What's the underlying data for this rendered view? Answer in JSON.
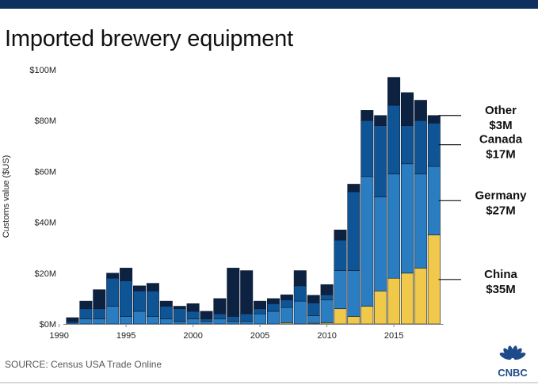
{
  "title": "Imported brewery equipment",
  "source": "SOURCE: Census USA Trade Online",
  "logo": {
    "icon": "peacock-icon",
    "text": "CNBC"
  },
  "colors": {
    "China": "#f0c94a",
    "Germany": "#2a7dc0",
    "Canada": "#0f5596",
    "Other": "#0d2140",
    "top_bar": "#0f2f5f",
    "leader": "#111111"
  },
  "chart_data": {
    "type": "bar",
    "stacked": true,
    "title": "Imported brewery equipment",
    "xlabel": "",
    "ylabel": "Customs value ($US)",
    "ylim": [
      0,
      100
    ],
    "y_ticks": [
      0,
      20,
      40,
      60,
      80,
      100
    ],
    "y_tick_labels": [
      "$0M",
      "$20M",
      "$40M",
      "$60M",
      "$80M",
      "$100M"
    ],
    "x_ticks": [
      1990,
      1995,
      2000,
      2005,
      2010,
      2015
    ],
    "x_tick_labels": [
      "1990",
      "1995",
      "2000",
      "2005",
      "2010",
      "2015"
    ],
    "grid": false,
    "legend": "annotations at right of last bar",
    "categories": [
      1991,
      1992,
      1993,
      1994,
      1995,
      1996,
      1997,
      1998,
      1999,
      2000,
      2001,
      2002,
      2003,
      2004,
      2005,
      2006,
      2007,
      2008,
      2009,
      2010,
      2011,
      2012,
      2013,
      2014,
      2015,
      2016,
      2017,
      2018
    ],
    "series": [
      {
        "name": "China",
        "values": [
          0,
          0,
          0,
          0,
          0,
          0,
          0,
          0,
          0,
          0,
          0,
          0,
          0,
          0,
          0,
          0,
          0.5,
          0,
          0.3,
          0.5,
          6,
          3,
          7,
          13,
          18,
          20,
          22,
          35
        ]
      },
      {
        "name": "Germany",
        "values": [
          0.5,
          2,
          2,
          7,
          3,
          5,
          3,
          2,
          1,
          2,
          1,
          2,
          1,
          1,
          4,
          5,
          6,
          9,
          3,
          9,
          15,
          18,
          51,
          37,
          41,
          43,
          37,
          27
        ]
      },
      {
        "name": "Canada",
        "values": [
          0.5,
          4,
          4,
          11,
          14,
          8,
          10,
          5,
          5,
          3,
          1,
          2,
          2,
          3,
          2,
          3,
          3,
          6,
          5,
          2,
          12,
          31,
          22,
          28,
          27,
          15,
          21,
          17
        ]
      },
      {
        "name": "Other",
        "values": [
          1.5,
          3,
          7.5,
          2,
          5,
          2,
          3,
          2,
          1,
          3,
          3,
          6,
          19,
          17,
          3,
          2,
          2,
          6,
          3,
          4,
          4,
          3,
          4,
          4,
          11,
          13,
          8,
          3
        ]
      }
    ],
    "annotations": [
      {
        "series": "Other",
        "name": "Other",
        "value_label": "$3M"
      },
      {
        "series": "Canada",
        "name": "Canada",
        "value_label": "$17M"
      },
      {
        "series": "Germany",
        "name": "Germany",
        "value_label": "$27M"
      },
      {
        "series": "China",
        "name": "China",
        "value_label": "$35M"
      }
    ]
  }
}
